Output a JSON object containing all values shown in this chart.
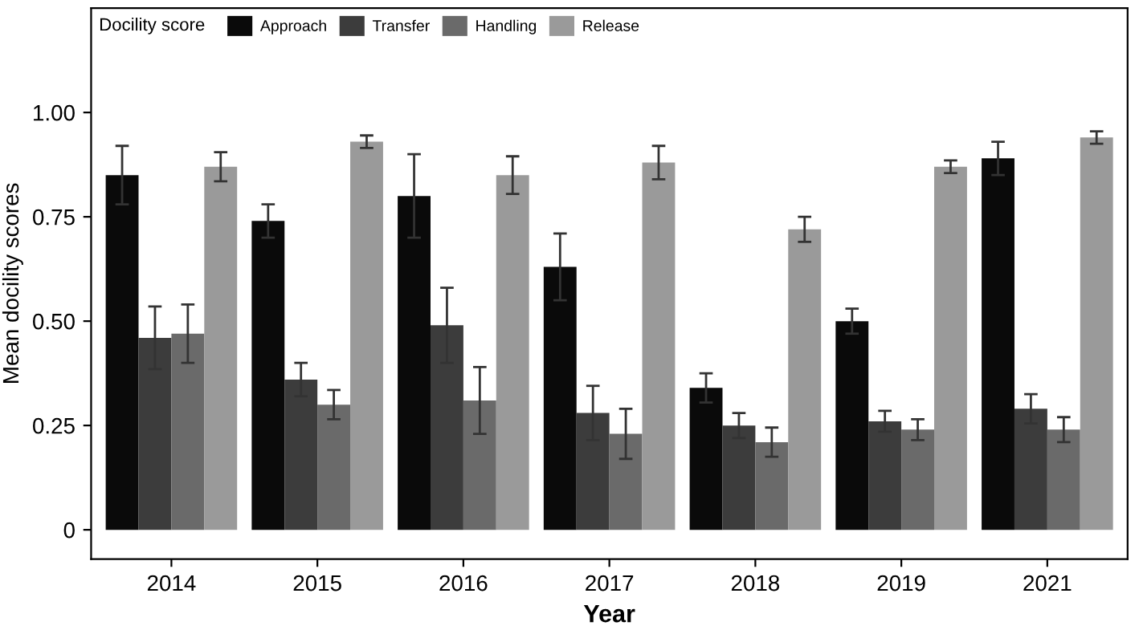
{
  "chart_data": {
    "type": "bar",
    "xlabel": "Year",
    "ylabel": "Mean docility scores",
    "legend_title": "Docility score",
    "categories": [
      "2014",
      "2015",
      "2016",
      "2017",
      "2018",
      "2019",
      "2021"
    ],
    "series": [
      {
        "name": "Approach",
        "color": "#0a0a0a",
        "values": [
          0.85,
          0.74,
          0.8,
          0.63,
          0.34,
          0.5,
          0.89
        ],
        "errors": [
          0.07,
          0.04,
          0.1,
          0.08,
          0.035,
          0.03,
          0.04
        ]
      },
      {
        "name": "Transfer",
        "color": "#3c3c3c",
        "values": [
          0.46,
          0.36,
          0.49,
          0.28,
          0.25,
          0.26,
          0.29
        ],
        "errors": [
          0.075,
          0.04,
          0.09,
          0.065,
          0.03,
          0.025,
          0.035
        ]
      },
      {
        "name": "Handling",
        "color": "#6a6a6a",
        "values": [
          0.47,
          0.3,
          0.31,
          0.23,
          0.21,
          0.24,
          0.24
        ],
        "errors": [
          0.07,
          0.035,
          0.08,
          0.06,
          0.035,
          0.025,
          0.03
        ]
      },
      {
        "name": "Release",
        "color": "#9a9a9a",
        "values": [
          0.87,
          0.93,
          0.85,
          0.88,
          0.72,
          0.87,
          0.94
        ],
        "errors": [
          0.035,
          0.015,
          0.045,
          0.04,
          0.03,
          0.015,
          0.015
        ]
      }
    ],
    "ylim": [
      -0.07,
      1.25
    ],
    "yticks": [
      {
        "value": 0,
        "label": "0"
      },
      {
        "value": 0.25,
        "label": "0.25"
      },
      {
        "value": 0.5,
        "label": "0.50"
      },
      {
        "value": 0.75,
        "label": "0.75"
      },
      {
        "value": 1.0,
        "label": "1.00"
      }
    ],
    "grid": false,
    "legend": "top left"
  }
}
